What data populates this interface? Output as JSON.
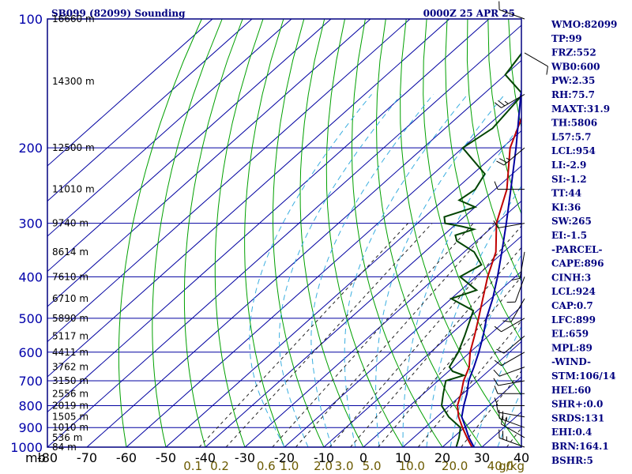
{
  "chart_data": {
    "type": "line",
    "title": "SB099 (82099) Sounding",
    "valid_time": "0000Z 25 APR 25",
    "pressure_axis": {
      "unit_label": "mb",
      "scale": "log",
      "range": [
        100,
        1000
      ],
      "ticks": [
        100,
        200,
        300,
        400,
        500,
        600,
        700,
        800,
        900,
        1000
      ]
    },
    "temperature_axis": {
      "skewed": true,
      "range": [
        -80,
        40
      ],
      "ticks": [
        -80,
        -70,
        -60,
        -50,
        -40,
        -30,
        -20,
        -10,
        0,
        10,
        20,
        30,
        40
      ]
    },
    "mixing_ratio_labels": [
      "0.1",
      "0.2",
      "0.6",
      "1.0",
      "2.0",
      "3.0",
      "5.0",
      "10.0",
      "20.0",
      "40.0"
    ],
    "mixing_ratio_unit": "g/kg",
    "height_labels": [
      {
        "p": 100,
        "text": "16660 m"
      },
      {
        "p": 140,
        "text": "14300 m"
      },
      {
        "p": 200,
        "text": "12500 m"
      },
      {
        "p": 250,
        "text": "11010 m"
      },
      {
        "p": 300,
        "text": "9740 m"
      },
      {
        "p": 350,
        "text": "8614 m"
      },
      {
        "p": 400,
        "text": "7610 m"
      },
      {
        "p": 450,
        "text": "6710 m"
      },
      {
        "p": 500,
        "text": "5890 m"
      },
      {
        "p": 550,
        "text": "5117 m"
      },
      {
        "p": 600,
        "text": "4411 m"
      },
      {
        "p": 650,
        "text": "3762 m"
      },
      {
        "p": 700,
        "text": "3150 m"
      },
      {
        "p": 750,
        "text": "2556 m"
      },
      {
        "p": 800,
        "text": "2019 m"
      },
      {
        "p": 850,
        "text": "1505 m"
      },
      {
        "p": 900,
        "text": "1010 m"
      },
      {
        "p": 950,
        "text": "536 m"
      },
      {
        "p": 1000,
        "text": "84 m"
      }
    ],
    "series": [
      {
        "color": "#c00000",
        "points": [
          [
            1000,
            27.5
          ],
          [
            950,
            23.5
          ],
          [
            900,
            19.5
          ],
          [
            850,
            15.5
          ],
          [
            800,
            12
          ],
          [
            750,
            9.5
          ],
          [
            700,
            6.5
          ],
          [
            650,
            4
          ],
          [
            600,
            0
          ],
          [
            550,
            -3.5
          ],
          [
            500,
            -7.5
          ],
          [
            450,
            -12
          ],
          [
            400,
            -17
          ],
          [
            350,
            -22
          ],
          [
            300,
            -30
          ],
          [
            250,
            -37
          ],
          [
            200,
            -48
          ],
          [
            150,
            -58
          ],
          [
            140,
            -62
          ],
          [
            100,
            -71
          ]
        ]
      },
      {
        "color": "#004400",
        "points": [
          [
            1000,
            23.5
          ],
          [
            950,
            21.5
          ],
          [
            900,
            19
          ],
          [
            850,
            13
          ],
          [
            800,
            8
          ],
          [
            750,
            5
          ],
          [
            700,
            2
          ],
          [
            680,
            5
          ],
          [
            665,
            1
          ],
          [
            650,
            -1
          ],
          [
            600,
            -3
          ],
          [
            550,
            -6
          ],
          [
            500,
            -9.5
          ],
          [
            480,
            -11
          ],
          [
            450,
            -20
          ],
          [
            430,
            -16
          ],
          [
            400,
            -24
          ],
          [
            375,
            -22
          ],
          [
            350,
            -27.5
          ],
          [
            330,
            -35
          ],
          [
            320,
            -37
          ],
          [
            310,
            -34
          ],
          [
            305,
            -38
          ],
          [
            300,
            -43
          ],
          [
            290,
            -45
          ],
          [
            275,
            -40
          ],
          [
            265,
            -46
          ],
          [
            250,
            -45
          ],
          [
            230,
            -47
          ],
          [
            200,
            -60
          ],
          [
            180,
            -58
          ],
          [
            150,
            -60
          ],
          [
            135,
            -70
          ],
          [
            120,
            -72
          ]
        ]
      },
      {
        "color": "#0000a0",
        "points": [
          [
            1000,
            28
          ],
          [
            950,
            24
          ],
          [
            900,
            20.3
          ],
          [
            850,
            16.3
          ],
          [
            800,
            13.6
          ],
          [
            750,
            11
          ],
          [
            700,
            7.8
          ],
          [
            650,
            5.2
          ],
          [
            600,
            2.2
          ],
          [
            550,
            -1.3
          ],
          [
            500,
            -5.5
          ],
          [
            450,
            -9.5
          ],
          [
            400,
            -14.5
          ],
          [
            350,
            -20.5
          ],
          [
            300,
            -27.5
          ],
          [
            250,
            -36
          ],
          [
            200,
            -46.5
          ],
          [
            150,
            -60.5
          ],
          [
            110,
            -73
          ]
        ]
      }
    ],
    "winds": [
      {
        "p": 1000,
        "dir": 110,
        "spd": 15
      },
      {
        "p": 950,
        "dir": 120,
        "spd": 20
      },
      {
        "p": 900,
        "dir": 110,
        "spd": 15
      },
      {
        "p": 850,
        "dir": 100,
        "spd": 10
      },
      {
        "p": 800,
        "dir": 90,
        "spd": 10
      },
      {
        "p": 750,
        "dir": 90,
        "spd": 10
      },
      {
        "p": 700,
        "dir": 80,
        "spd": 10
      },
      {
        "p": 650,
        "dir": 70,
        "spd": 10
      },
      {
        "p": 600,
        "dir": 60,
        "spd": 10
      },
      {
        "p": 550,
        "dir": 50,
        "spd": 10
      },
      {
        "p": 500,
        "dir": 60,
        "spd": 10
      },
      {
        "p": 450,
        "dir": 30,
        "spd": 10
      },
      {
        "p": 400,
        "dir": 20,
        "spd": 10
      },
      {
        "p": 350,
        "dir": 10,
        "spd": 10
      },
      {
        "p": 300,
        "dir": 80,
        "spd": 10
      },
      {
        "p": 250,
        "dir": 90,
        "spd": 10
      },
      {
        "p": 200,
        "dir": 50,
        "spd": 15
      },
      {
        "p": 150,
        "dir": 60,
        "spd": 15
      },
      {
        "p": 120,
        "dir": 300,
        "spd": 10
      },
      {
        "p": 100,
        "dir": 110,
        "spd": 10
      }
    ]
  },
  "indices": [
    "WMO:82099",
    "TP:99",
    "FRZ:552",
    "WB0:600",
    "PW:2.35",
    "RH:75.7",
    "MAXT:31.9",
    "TH:5806",
    "L57:5.7",
    "LCL:954",
    "LI:-2.9",
    "SI:-1.2",
    "TT:44",
    "KI:36",
    "SW:265",
    "EI:-1.5",
    "-PARCEL-",
    "CAPE:896",
    "CINH:3",
    "LCL:924",
    "CAP:0.7",
    "LFC:899",
    "EL:659",
    "MPL:89",
    "-WIND-",
    "STM:106/14",
    "HEL:60",
    "SHR+:0.0",
    "SRDS:131",
    "EHI:0.4",
    "BRN:164.1",
    "BSHR:5"
  ],
  "colors": {
    "frame": "#000080",
    "isotherm": "#0000a0",
    "dry_adiabat": "#00a000",
    "moist_adiabat": "#3aaee0",
    "mixing_ratio": "#222222"
  }
}
